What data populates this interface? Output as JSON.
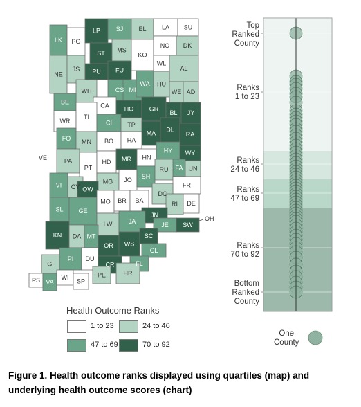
{
  "legend": {
    "title": "Health Outcome Ranks",
    "items": [
      {
        "label": "1 to 23",
        "color": "#ffffff"
      },
      {
        "label": "24 to 46",
        "color": "#b3d3c3"
      },
      {
        "label": "47 to 69",
        "color": "#6aa58a"
      },
      {
        "label": "70 to 92",
        "color": "#31614b"
      }
    ]
  },
  "caption": {
    "line1": "Figure 1. Health outcome ranks displayed using quartiles (map) and",
    "line2": "underlying health outcome scores (chart)"
  },
  "chart": {
    "top_label": [
      "Top",
      "Ranked",
      "County"
    ],
    "bands": [
      {
        "label": [
          "Ranks",
          "1 to 23"
        ],
        "color": "#eef4f1"
      },
      {
        "label": [
          "Ranks",
          "24 to 46"
        ],
        "color": "#d5e7de"
      },
      {
        "label": [
          "Ranks",
          "47 to 69"
        ],
        "color": "#bad8c9"
      },
      {
        "label": [
          "Ranks",
          "70 to 92"
        ],
        "color": "#9db9ab"
      }
    ],
    "bottom_label": [
      "Bottom",
      "Ranked",
      "County"
    ],
    "one_county": [
      "One",
      "County"
    ],
    "dot_color": "#8fb3a0"
  },
  "out_of_state_labels": {
    "west": "VE",
    "east": "OH"
  },
  "counties": [
    {
      "id": "LK",
      "q": 3
    },
    {
      "id": "PO",
      "q": 1
    },
    {
      "id": "LP",
      "q": 4
    },
    {
      "id": "SJ",
      "q": 3
    },
    {
      "id": "EL",
      "q": 2
    },
    {
      "id": "LA",
      "q": 1
    },
    {
      "id": "SU",
      "q": 1
    },
    {
      "id": "ST",
      "q": 4
    },
    {
      "id": "MS",
      "q": 2
    },
    {
      "id": "KO",
      "q": 1
    },
    {
      "id": "NO",
      "q": 1
    },
    {
      "id": "DK",
      "q": 2
    },
    {
      "id": "NE",
      "q": 2
    },
    {
      "id": "JS",
      "q": 2
    },
    {
      "id": "PU",
      "q": 4
    },
    {
      "id": "FU",
      "q": 4
    },
    {
      "id": "WL",
      "q": 1
    },
    {
      "id": "AL",
      "q": 2
    },
    {
      "id": "WH",
      "q": 2
    },
    {
      "id": "CS",
      "q": 3
    },
    {
      "id": "MI",
      "q": 3
    },
    {
      "id": "WA",
      "q": 3
    },
    {
      "id": "HU",
      "q": 2
    },
    {
      "id": "WE",
      "q": 2
    },
    {
      "id": "AD",
      "q": 2
    },
    {
      "id": "BE",
      "q": 3
    },
    {
      "id": "CA",
      "q": 1
    },
    {
      "id": "HO",
      "q": 4
    },
    {
      "id": "GR",
      "q": 4
    },
    {
      "id": "BL",
      "q": 4
    },
    {
      "id": "JY",
      "q": 4
    },
    {
      "id": "WR",
      "q": 1
    },
    {
      "id": "TI",
      "q": 1
    },
    {
      "id": "CI",
      "q": 3
    },
    {
      "id": "TP",
      "q": 2
    },
    {
      "id": "MA",
      "q": 4
    },
    {
      "id": "DL",
      "q": 4
    },
    {
      "id": "RA",
      "q": 4
    },
    {
      "id": "FO",
      "q": 3
    },
    {
      "id": "MN",
      "q": 2
    },
    {
      "id": "BO",
      "q": 1
    },
    {
      "id": "HA",
      "q": 1
    },
    {
      "id": "HY",
      "q": 3
    },
    {
      "id": "PA",
      "q": 2
    },
    {
      "id": "PT",
      "q": 1
    },
    {
      "id": "HD",
      "q": 1
    },
    {
      "id": "MR",
      "q": 4
    },
    {
      "id": "HN",
      "q": 1
    },
    {
      "id": "WY",
      "q": 4
    },
    {
      "id": "FA",
      "q": 3
    },
    {
      "id": "UN",
      "q": 2
    },
    {
      "id": "VI",
      "q": 3
    },
    {
      "id": "CY",
      "q": 2
    },
    {
      "id": "MG",
      "q": 2
    },
    {
      "id": "JO",
      "q": 1
    },
    {
      "id": "SH",
      "q": 3
    },
    {
      "id": "RU",
      "q": 2
    },
    {
      "id": "OW",
      "q": 4
    },
    {
      "id": "FR",
      "q": 1
    },
    {
      "id": "DC",
      "q": 2
    },
    {
      "id": "SL",
      "q": 3
    },
    {
      "id": "GE",
      "q": 3
    },
    {
      "id": "MO",
      "q": 1
    },
    {
      "id": "BR",
      "q": 1
    },
    {
      "id": "BA",
      "q": 1
    },
    {
      "id": "RI",
      "q": 2
    },
    {
      "id": "DE",
      "q": 1
    },
    {
      "id": "JN",
      "q": 4
    },
    {
      "id": "LW",
      "q": 2
    },
    {
      "id": "JA",
      "q": 3
    },
    {
      "id": "JE",
      "q": 3
    },
    {
      "id": "SW",
      "q": 4
    },
    {
      "id": "OH",
      "q": 1
    },
    {
      "id": "KN",
      "q": 4
    },
    {
      "id": "DA",
      "q": 2
    },
    {
      "id": "MT",
      "q": 3
    },
    {
      "id": "OR",
      "q": 4
    },
    {
      "id": "WS",
      "q": 4
    },
    {
      "id": "SC",
      "q": 4
    },
    {
      "id": "CL",
      "q": 3
    },
    {
      "id": "GI",
      "q": 2
    },
    {
      "id": "PI",
      "q": 3
    },
    {
      "id": "DU",
      "q": 1
    },
    {
      "id": "CR",
      "q": 4
    },
    {
      "id": "FL",
      "q": 3
    },
    {
      "id": "HR",
      "q": 2
    },
    {
      "id": "PS",
      "q": 1
    },
    {
      "id": "VA",
      "q": 3
    },
    {
      "id": "WI",
      "q": 1
    },
    {
      "id": "SP",
      "q": 1
    },
    {
      "id": "PE",
      "q": 2
    }
  ]
}
